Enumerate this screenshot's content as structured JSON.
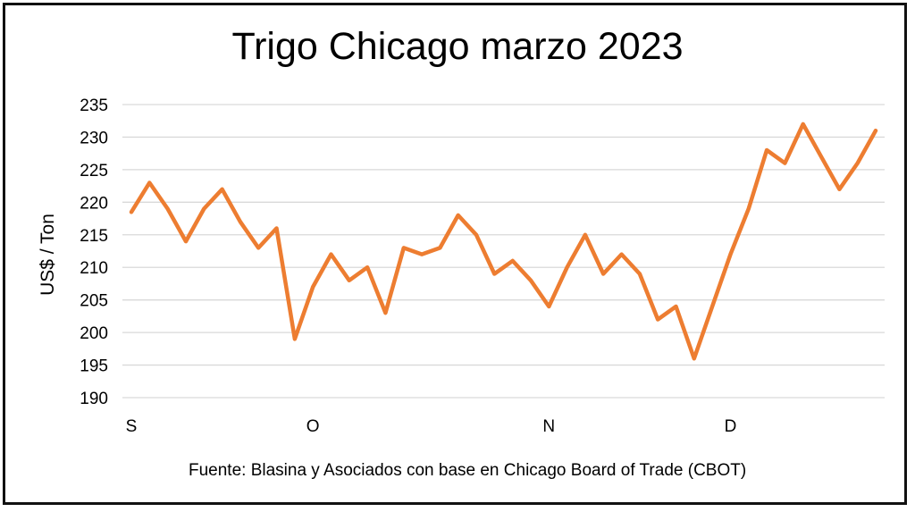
{
  "chart_data": {
    "type": "line",
    "title": "Trigo Chicago marzo 2023",
    "ylabel": "US$ / Ton",
    "xlabel": "",
    "source": "Fuente: Blasina y Asociados con base en Chicago Board of Trade (CBOT)",
    "ylim": [
      190,
      235
    ],
    "yticks": [
      190,
      195,
      200,
      205,
      210,
      215,
      220,
      225,
      230,
      235
    ],
    "grid": true,
    "legend": "none",
    "x_tick_labels": [
      {
        "label": "S",
        "index": 0
      },
      {
        "label": "O",
        "index": 10
      },
      {
        "label": "N",
        "index": 23
      },
      {
        "label": "D",
        "index": 33
      }
    ],
    "series": [
      {
        "color": "#ED7D31",
        "values": [
          218.5,
          223,
          219,
          214,
          219,
          222,
          217,
          213,
          216,
          199,
          207,
          212,
          208,
          210,
          203,
          213,
          212,
          213,
          218,
          215,
          209,
          211,
          208,
          204,
          210,
          215,
          209,
          212,
          209,
          202,
          204,
          196,
          204,
          212,
          219,
          228,
          226,
          232,
          227,
          222,
          226,
          231
        ]
      }
    ]
  }
}
